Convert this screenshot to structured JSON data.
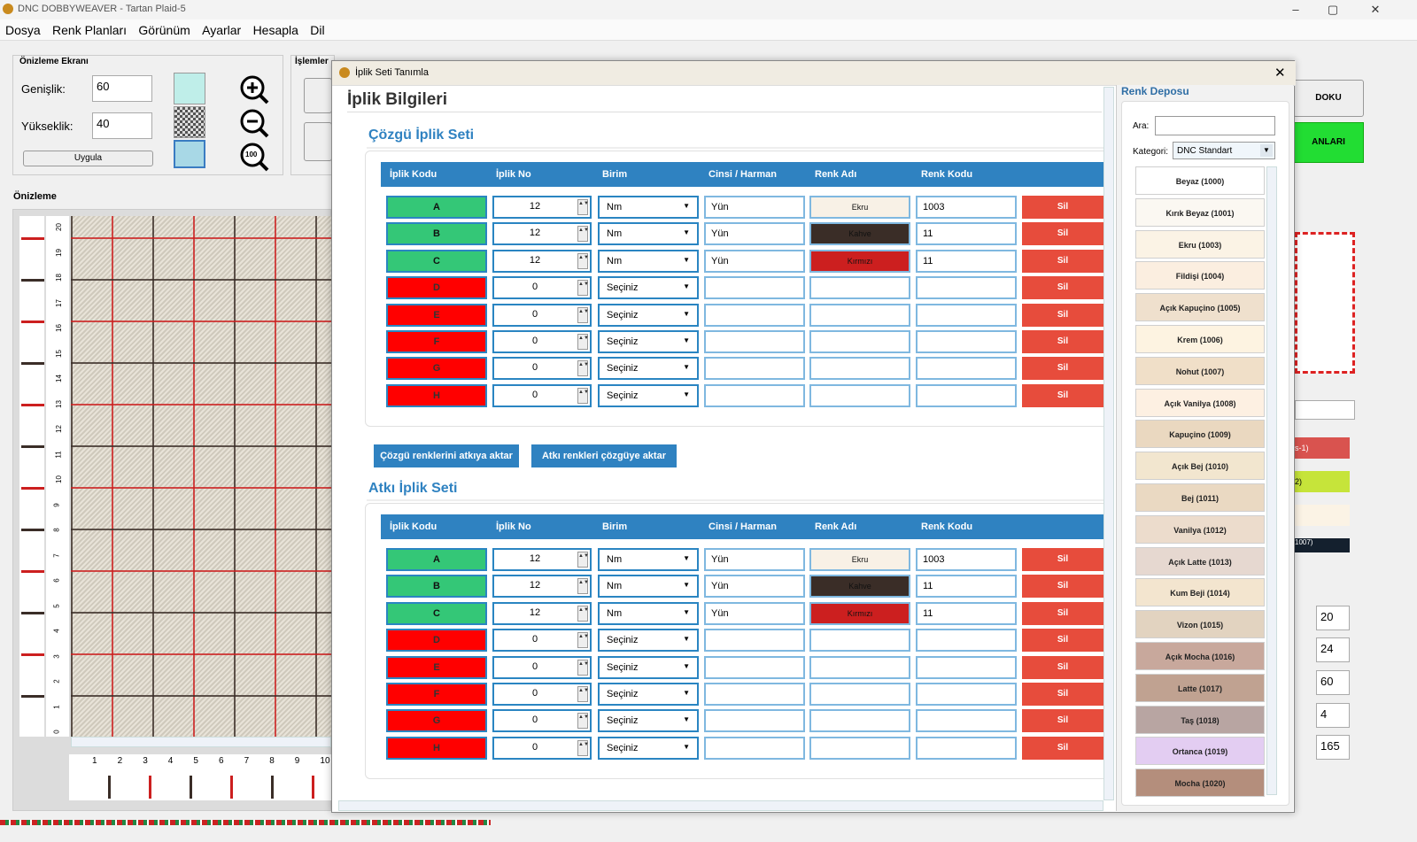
{
  "window": {
    "title": "DNC DOBBYWEAVER - Tartan Plaid-5",
    "minimize": "–",
    "maximize": "▢",
    "close": "✕"
  },
  "menu": [
    "Dosya",
    "Renk Planları",
    "Görünüm",
    "Ayarlar",
    "Hesapla",
    "Dil"
  ],
  "preview_panel": {
    "title": "Önizleme Ekranı",
    "width_label": "Genişlik:",
    "width_value": "60",
    "height_label": "Yükseklik:",
    "height_value": "40",
    "apply_button": "Uygula",
    "zoom_in_icon": "zoom-in-icon",
    "zoom_out_icon": "zoom-out-icon",
    "zoom_100_label": "100",
    "ops_title": "İşlemler",
    "preview_title": "Önizleme",
    "ruler_numbers": [
      "20",
      "19",
      "18",
      "17",
      "16",
      "15",
      "14",
      "13",
      "12",
      "11",
      "10",
      "9",
      "8",
      "7",
      "6",
      "5",
      "4",
      "3",
      "2",
      "1",
      "0"
    ],
    "bottom_ruler": [
      "1",
      "2",
      "3",
      "4",
      "5",
      "6",
      "7",
      "8",
      "9",
      "10"
    ]
  },
  "right_bg": {
    "btn_doku": "DOKU",
    "btn_planlari": "ANLARI",
    "values": [
      "20",
      "24",
      "60",
      "4",
      "165"
    ],
    "list_labels": [
      "s-1)",
      "2)",
      "1007)"
    ]
  },
  "dialog": {
    "title": "İplik Seti Tanımla",
    "close": "✕",
    "heading": "İplik Bilgileri",
    "warp_title": "Çözgü İplik Seti",
    "weft_title": "Atkı İplik Seti",
    "columns": [
      "İplik Kodu",
      "İplik No",
      "Birim",
      "Cinsi / Harman",
      "Renk Adı",
      "Renk Kodu"
    ],
    "delete_label": "Sil",
    "copy_warp_to_weft": "Çözgü renklerini atkıya aktar",
    "copy_weft_to_warp": "Atkı renkleri çözgüye aktar",
    "warp_rows": [
      {
        "code": "A",
        "no": "12",
        "unit": "Nm",
        "type": "Yün",
        "color_name": "Ekru",
        "color_code": "1003",
        "active": true,
        "swatch": "#f8f1e6"
      },
      {
        "code": "B",
        "no": "12",
        "unit": "Nm",
        "type": "Yün",
        "color_name": "Kahve",
        "color_code": "11",
        "active": true,
        "swatch": "#3a2d27"
      },
      {
        "code": "C",
        "no": "12",
        "unit": "Nm",
        "type": "Yün",
        "color_name": "Kırmızı",
        "color_code": "11",
        "active": true,
        "swatch": "#cc1f1f"
      },
      {
        "code": "D",
        "no": "0",
        "unit": "Seçiniz",
        "type": "",
        "color_name": "",
        "color_code": "",
        "active": false,
        "swatch": "#ffffff"
      },
      {
        "code": "E",
        "no": "0",
        "unit": "Seçiniz",
        "type": "",
        "color_name": "",
        "color_code": "",
        "active": false,
        "swatch": "#ffffff"
      },
      {
        "code": "F",
        "no": "0",
        "unit": "Seçiniz",
        "type": "",
        "color_name": "",
        "color_code": "",
        "active": false,
        "swatch": "#ffffff"
      },
      {
        "code": "G",
        "no": "0",
        "unit": "Seçiniz",
        "type": "",
        "color_name": "",
        "color_code": "",
        "active": false,
        "swatch": "#ffffff"
      },
      {
        "code": "H",
        "no": "0",
        "unit": "Seçiniz",
        "type": "",
        "color_name": "",
        "color_code": "",
        "active": false,
        "swatch": "#ffffff"
      }
    ],
    "weft_rows": [
      {
        "code": "A",
        "no": "12",
        "unit": "Nm",
        "type": "Yün",
        "color_name": "Ekru",
        "color_code": "1003",
        "active": true,
        "swatch": "#f8f1e6"
      },
      {
        "code": "B",
        "no": "12",
        "unit": "Nm",
        "type": "Yün",
        "color_name": "Kahve",
        "color_code": "11",
        "active": true,
        "swatch": "#3a2d27"
      },
      {
        "code": "C",
        "no": "12",
        "unit": "Nm",
        "type": "Yün",
        "color_name": "Kırmızı",
        "color_code": "11",
        "active": true,
        "swatch": "#cc1f1f"
      },
      {
        "code": "D",
        "no": "0",
        "unit": "Seçiniz",
        "type": "",
        "color_name": "",
        "color_code": "",
        "active": false,
        "swatch": "#ffffff"
      },
      {
        "code": "E",
        "no": "0",
        "unit": "Seçiniz",
        "type": "",
        "color_name": "",
        "color_code": "",
        "active": false,
        "swatch": "#ffffff"
      },
      {
        "code": "F",
        "no": "0",
        "unit": "Seçiniz",
        "type": "",
        "color_name": "",
        "color_code": "",
        "active": false,
        "swatch": "#ffffff"
      },
      {
        "code": "G",
        "no": "0",
        "unit": "Seçiniz",
        "type": "",
        "color_name": "",
        "color_code": "",
        "active": false,
        "swatch": "#ffffff"
      },
      {
        "code": "H",
        "no": "0",
        "unit": "Seçiniz",
        "type": "",
        "color_name": "",
        "color_code": "",
        "active": false,
        "swatch": "#ffffff"
      }
    ]
  },
  "color_store": {
    "title": "Renk Deposu",
    "search_label": "Ara:",
    "search_value": "",
    "category_label": "Kategori:",
    "category_value": "DNC Standart",
    "items": [
      {
        "name": "Beyaz (1000)",
        "color": "#ffffff"
      },
      {
        "name": "Kırık Beyaz (1001)",
        "color": "#fbf8f2"
      },
      {
        "name": "Ekru (1003)",
        "color": "#fbf3e5"
      },
      {
        "name": "Fildişi (1004)",
        "color": "#fbeee0"
      },
      {
        "name": "Açık Kapuçino (1005)",
        "color": "#efe0cd"
      },
      {
        "name": "Krem (1006)",
        "color": "#fdf3e1"
      },
      {
        "name": "Nohut (1007)",
        "color": "#f0dfc8"
      },
      {
        "name": "Açık Vanilya (1008)",
        "color": "#fdf0e2"
      },
      {
        "name": "Kapuçino (1009)",
        "color": "#ead8c0"
      },
      {
        "name": "Açık Bej (1010)",
        "color": "#f2e6cf"
      },
      {
        "name": "Bej (1011)",
        "color": "#ead9c2"
      },
      {
        "name": "Vanilya (1012)",
        "color": "#ecdccc"
      },
      {
        "name": "Açık Latte (1013)",
        "color": "#e6d8d0"
      },
      {
        "name": "Kum Beji (1014)",
        "color": "#f3e5cf"
      },
      {
        "name": "Vizon (1015)",
        "color": "#e2d3c0"
      },
      {
        "name": "Açık Mocha (1016)",
        "color": "#c8a89c"
      },
      {
        "name": "Latte (1017)",
        "color": "#c0a291"
      },
      {
        "name": "Taş (1018)",
        "color": "#b8a5a2"
      },
      {
        "name": "Ortanca (1019)",
        "color": "#e3cdf2"
      },
      {
        "name": "Mocha (1020)",
        "color": "#b48e7c"
      }
    ]
  }
}
